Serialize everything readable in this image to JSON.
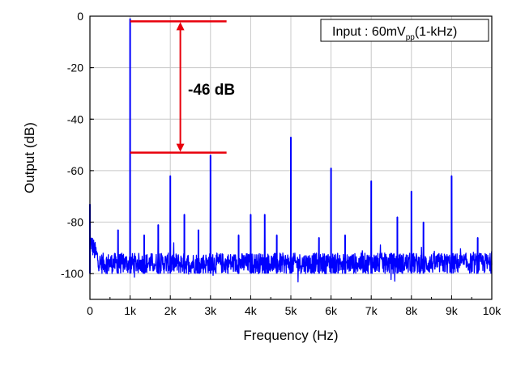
{
  "chart_data": {
    "type": "line",
    "xlabel": "Frequency (Hz)",
    "ylabel": "Output (dB)",
    "xlim": [
      0,
      10000
    ],
    "ylim": [
      -110,
      0
    ],
    "x_ticks": [
      0,
      1000,
      2000,
      3000,
      4000,
      5000,
      6000,
      7000,
      8000,
      9000,
      10000
    ],
    "x_tick_labels": [
      "0",
      "1k",
      "2k",
      "3k",
      "4k",
      "5k",
      "6k",
      "7k",
      "8k",
      "9k",
      "10k"
    ],
    "y_ticks": [
      0,
      -20,
      -40,
      -60,
      -80,
      -100
    ],
    "y_tick_labels": [
      "0",
      "-20",
      "-40",
      "-60",
      "-80",
      "-100"
    ],
    "grid": true,
    "series_color": "#0000ff",
    "noise_floor": -96,
    "peaks": [
      {
        "x": 0,
        "y": -73
      },
      {
        "x": 700,
        "y": -83
      },
      {
        "x": 1000,
        "y": -1
      },
      {
        "x": 1350,
        "y": -85
      },
      {
        "x": 1700,
        "y": -81
      },
      {
        "x": 2000,
        "y": -62
      },
      {
        "x": 2350,
        "y": -77
      },
      {
        "x": 2700,
        "y": -83
      },
      {
        "x": 3000,
        "y": -54
      },
      {
        "x": 3700,
        "y": -85
      },
      {
        "x": 4000,
        "y": -77
      },
      {
        "x": 4350,
        "y": -77
      },
      {
        "x": 4650,
        "y": -85
      },
      {
        "x": 5000,
        "y": -47
      },
      {
        "x": 5700,
        "y": -86
      },
      {
        "x": 6000,
        "y": -59
      },
      {
        "x": 6350,
        "y": -85
      },
      {
        "x": 7000,
        "y": -64
      },
      {
        "x": 7650,
        "y": -78
      },
      {
        "x": 8000,
        "y": -68
      },
      {
        "x": 8300,
        "y": -80
      },
      {
        "x": 9000,
        "y": -62
      },
      {
        "x": 9650,
        "y": -86
      }
    ],
    "legend": {
      "prefix": "Input : 60mV",
      "subscript": "pp",
      "suffix": "(1-kHz)",
      "placement": "top-right"
    },
    "annotation": {
      "text": "-46 dB",
      "color": "#e8000b",
      "y_top": -2,
      "y_bottom": -53,
      "x_start": 1000,
      "x_end": 3400,
      "arrow_x": 2250
    }
  }
}
